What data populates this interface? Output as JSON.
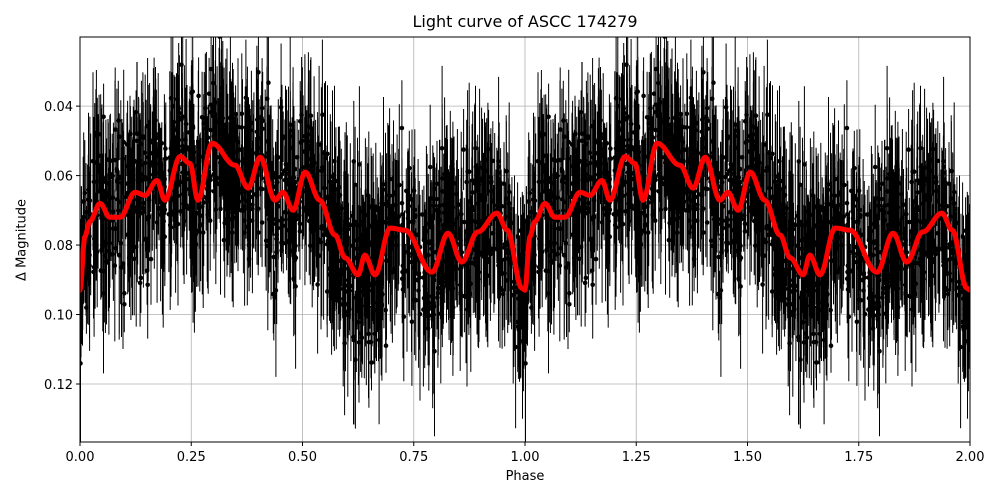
{
  "chart_data": {
    "type": "scatter",
    "title": "Light curve of ASCC 174279",
    "xlabel": "Phase",
    "ylabel": "Δ Magnitude",
    "xlim": [
      0.0,
      2.0
    ],
    "ylim": [
      0.1367,
      0.0201
    ],
    "y_inverted": true,
    "grid": true,
    "legend": null,
    "x_ticks": [
      "0.00",
      "0.25",
      "0.50",
      "0.75",
      "1.00",
      "1.25",
      "1.50",
      "1.75",
      "2.00"
    ],
    "x_tick_values": [
      0.0,
      0.25,
      0.5,
      0.75,
      1.0,
      1.25,
      1.5,
      1.75,
      2.0
    ],
    "y_ticks": [
      "0.04",
      "0.06",
      "0.08",
      "0.10",
      "0.12"
    ],
    "y_tick_values": [
      0.04,
      0.06,
      0.08,
      0.1,
      0.12
    ],
    "series": [
      {
        "name": "observations",
        "kind": "errorbar-scatter",
        "color": "#000000",
        "description": "Dense phase-folded photometry with error bars, shown twice (phase 0-1 repeated at 1-2); scatter spans full y-range around the smoothed curve"
      },
      {
        "name": "smoothed light curve",
        "kind": "line",
        "color": "#ff0000",
        "period_repeat": 1.0,
        "phase": [
          0.0,
          0.011,
          0.022,
          0.045,
          0.067,
          0.09,
          0.124,
          0.146,
          0.173,
          0.191,
          0.225,
          0.247,
          0.265,
          0.297,
          0.348,
          0.378,
          0.405,
          0.438,
          0.456,
          0.479,
          0.506,
          0.539,
          0.573,
          0.596,
          0.625,
          0.64,
          0.663,
          0.697,
          0.73,
          0.791,
          0.827,
          0.858,
          0.894,
          0.937,
          0.96,
          0.993,
          1.0
        ],
        "values": [
          0.093,
          0.0775,
          0.0732,
          0.068,
          0.072,
          0.072,
          0.0648,
          0.0657,
          0.0614,
          0.0671,
          0.0545,
          0.0565,
          0.0671,
          0.0507,
          0.057,
          0.0636,
          0.0547,
          0.0671,
          0.0648,
          0.07,
          0.059,
          0.0671,
          0.0771,
          0.0837,
          0.0886,
          0.0829,
          0.0886,
          0.0751,
          0.0757,
          0.0878,
          0.0766,
          0.0849,
          0.0762,
          0.0708,
          0.0757,
          0.0924,
          0.093
        ]
      }
    ]
  },
  "colors": {
    "data": "#000000",
    "fit": "#ff0000",
    "grid": "#b0b0b0",
    "background": "#ffffff"
  }
}
